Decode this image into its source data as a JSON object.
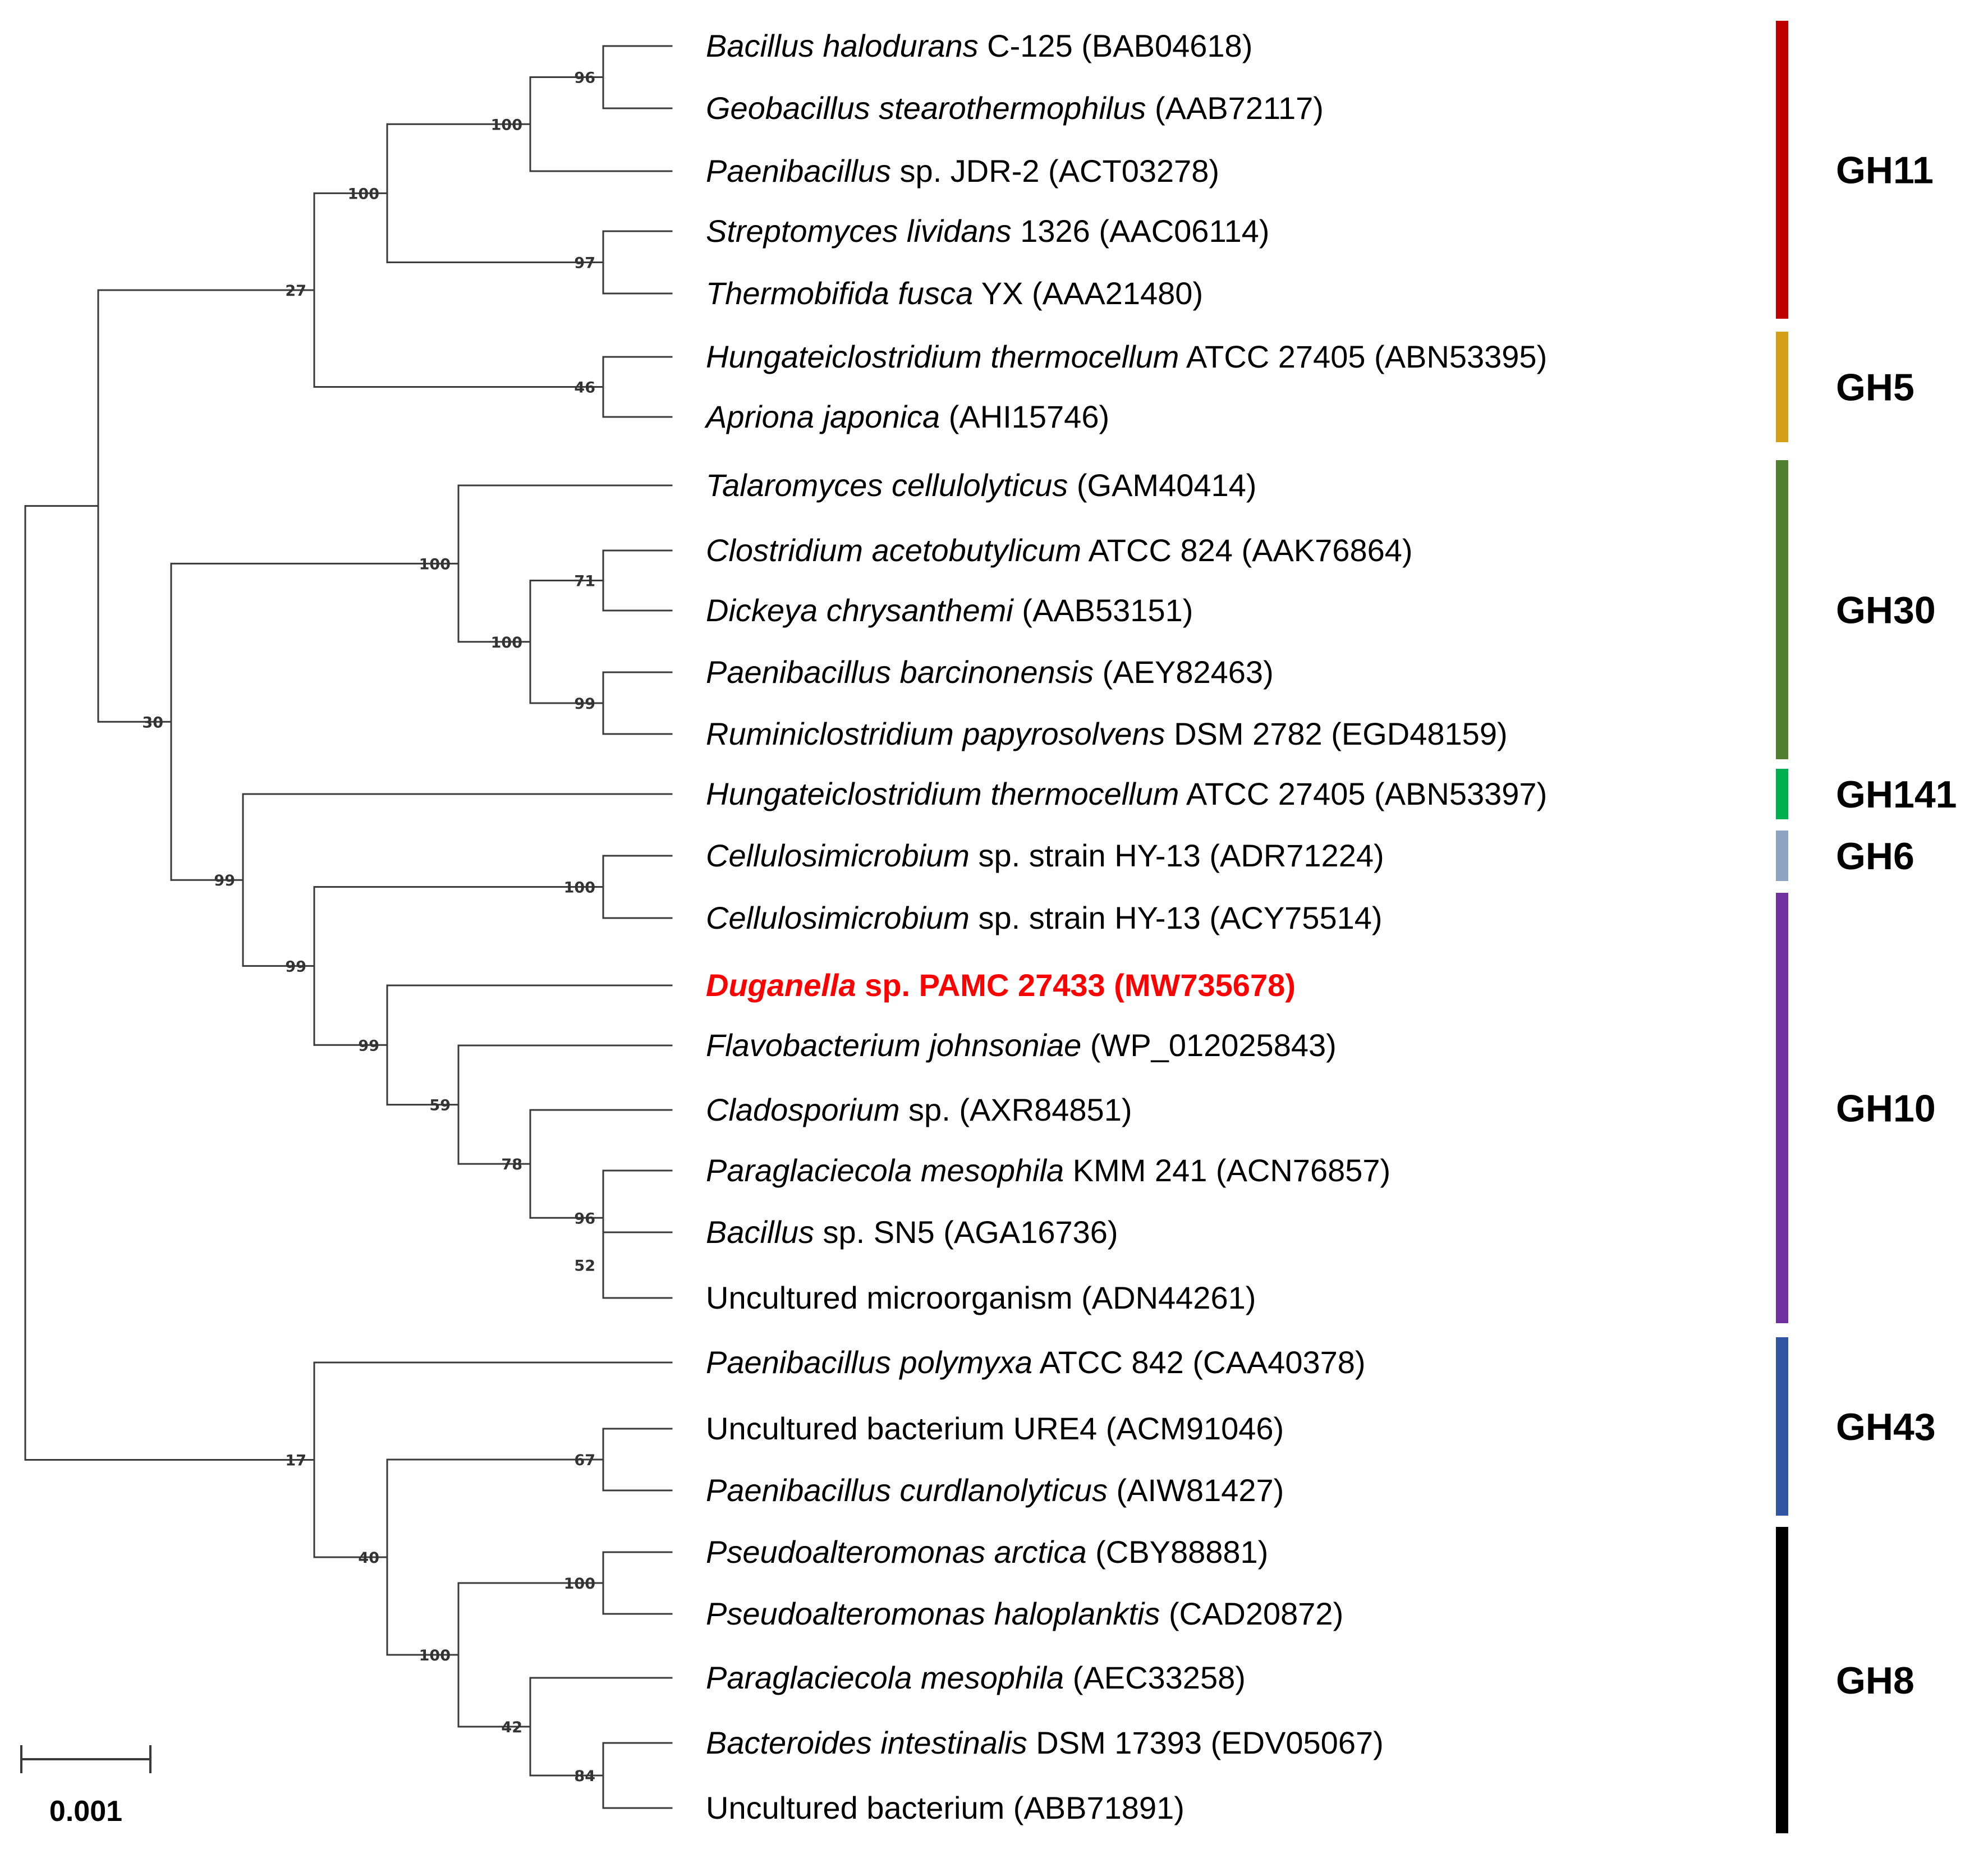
{
  "tree": {
    "nodes": {
      "ROOT": {
        "children": [
          "N_14",
          "N_17"
        ]
      },
      "N_14": {
        "children": [
          "N_30",
          "N_27"
        ]
      },
      "N_27": {
        "children": [
          "N_100_gh11",
          "N_46"
        ],
        "support": "27"
      },
      "N_100_gh11": {
        "children": [
          "N_100_a",
          "N_97"
        ],
        "support": "100"
      },
      "N_100_a": {
        "children": [
          "N_96",
          "L3"
        ],
        "support": "100"
      },
      "N_96": {
        "children": [
          "L1",
          "L2"
        ],
        "support": "96"
      },
      "N_97": {
        "children": [
          "L4",
          "L5"
        ],
        "support": "97"
      },
      "N_46": {
        "children": [
          "L6",
          "L7"
        ],
        "support": "46"
      },
      "N_30": {
        "children": [
          "N_100_gh30",
          "N_99_top"
        ],
        "support": "30"
      },
      "N_100_gh30": {
        "children": [
          "L8",
          "N_100_b"
        ],
        "support": "100"
      },
      "N_100_b": {
        "children": [
          "N_71",
          "N_99_gh30"
        ],
        "support": "100"
      },
      "N_71": {
        "children": [
          "L9",
          "L10"
        ],
        "support": "71"
      },
      "N_99_gh30": {
        "children": [
          "L11",
          "L12"
        ],
        "support": "99"
      },
      "N_99_top": {
        "children": [
          "L13",
          "N_99_b"
        ],
        "support": "99"
      },
      "N_99_b": {
        "children": [
          "N_100_gh6",
          "N_99_c"
        ],
        "support": "99"
      },
      "N_100_gh6": {
        "children": [
          "L14",
          "L15"
        ],
        "support": "100"
      },
      "N_99_c": {
        "children": [
          "L16",
          "N_59"
        ],
        "support": "99"
      },
      "N_59": {
        "children": [
          "L17",
          "N_78"
        ],
        "support": "59"
      },
      "N_78": {
        "children": [
          "L18",
          "N_96_b"
        ],
        "support": "78"
      },
      "N_96_b": {
        "children": [
          "L19",
          "N_52"
        ],
        "support": "96"
      },
      "N_52": {
        "children": [
          "L20",
          "L21"
        ],
        "support": "52"
      },
      "N_17": {
        "children": [
          "L22",
          "N_40"
        ],
        "support": "17"
      },
      "N_40": {
        "children": [
          "N_67",
          "N_100_gh8"
        ],
        "support": "40"
      },
      "N_67": {
        "children": [
          "L23",
          "L24"
        ],
        "support": "67"
      },
      "N_100_gh8": {
        "children": [
          "N_100_c",
          "N_42"
        ],
        "support": "100"
      },
      "N_100_c": {
        "children": [
          "L25",
          "L26"
        ],
        "support": "100"
      },
      "N_42": {
        "children": [
          "L27",
          "N_84"
        ],
        "support": "42"
      },
      "N_84": {
        "children": [
          "L28",
          "L29"
        ],
        "support": "84"
      }
    },
    "leaves": [
      {
        "id": "L1",
        "italic": "Bacillus halodurans",
        "rest": " C-125 (BAB04618)"
      },
      {
        "id": "L2",
        "italic": "Geobacillus stearothermophilus",
        "rest": " (AAB72117)"
      },
      {
        "id": "L3",
        "italic": "Paenibacillus",
        "rest": " sp. JDR-2 (ACT03278)"
      },
      {
        "id": "L4",
        "italic": "Streptomyces lividans",
        "rest": " 1326 (AAC06114)"
      },
      {
        "id": "L5",
        "italic": "Thermobifida fusca",
        "rest": " YX (AAA21480)"
      },
      {
        "id": "L6",
        "italic": "Hungateiclostridium thermocellum",
        "rest": " ATCC 27405 (ABN53395)"
      },
      {
        "id": "L7",
        "italic": "Apriona japonica",
        "rest": " (AHI15746)"
      },
      {
        "id": "L8",
        "italic": "Talaromyces cellulolyticus",
        "rest": " (GAM40414)"
      },
      {
        "id": "L9",
        "italic": "Clostridium acetobutylicum",
        "rest": " ATCC 824 (AAK76864)"
      },
      {
        "id": "L10",
        "italic": "Dickeya chrysanthemi",
        "rest": " (AAB53151)"
      },
      {
        "id": "L11",
        "italic": "Paenibacillus barcinonensis",
        "rest": " (AEY82463)"
      },
      {
        "id": "L12",
        "italic": "Ruminiclostridium papyrosolvens",
        "rest": " DSM 2782 (EGD48159)"
      },
      {
        "id": "L13",
        "italic": "Hungateiclostridium thermocellum",
        "rest": " ATCC 27405 (ABN53397)"
      },
      {
        "id": "L14",
        "italic": "Cellulosimicrobium",
        "rest": " sp. strain HY-13 (ADR71224)"
      },
      {
        "id": "L15",
        "italic": "Cellulosimicrobium",
        "rest": " sp. strain HY-13 (ACY75514)"
      },
      {
        "id": "L16",
        "italic": "Duganella",
        "rest": " sp. PAMC 27433 (MW735678)",
        "highlight": true
      },
      {
        "id": "L17",
        "italic": "Flavobacterium johnsoniae",
        "rest": " (WP_012025843)"
      },
      {
        "id": "L18",
        "italic": "Cladosporium",
        "rest": " sp. (AXR84851)"
      },
      {
        "id": "L19",
        "italic": "Paraglaciecola mesophila",
        "rest": " KMM 241 (ACN76857)"
      },
      {
        "id": "L20",
        "italic": "Bacillus",
        "rest": " sp. SN5 (AGA16736)"
      },
      {
        "id": "L21",
        "italic": "",
        "rest": "Uncultured microorganism (ADN44261)"
      },
      {
        "id": "L22",
        "italic": "Paenibacillus polymyxa",
        "rest": " ATCC 842 (CAA40378)"
      },
      {
        "id": "L23",
        "italic": "",
        "rest": "Uncultured bacterium URE4 (ACM91046)"
      },
      {
        "id": "L24",
        "italic": "Paenibacillus curdlanolyticus",
        "rest": " (AIW81427)"
      },
      {
        "id": "L25",
        "italic": "Pseudoalteromonas arctica",
        "rest": " (CBY88881)"
      },
      {
        "id": "L26",
        "italic": "Pseudoalteromonas haloplanktis",
        "rest": " (CAD20872)"
      },
      {
        "id": "L27",
        "italic": "Paraglaciecola mesophila",
        "rest": " (AEC33258)"
      },
      {
        "id": "L28",
        "italic": "Bacteroides intestinalis",
        "rest": " DSM 17393 (EDV05067)"
      },
      {
        "id": "L29",
        "italic": "",
        "rest": "Uncultured bacterium (ABB71891)"
      }
    ]
  },
  "families": [
    {
      "name": "GH11",
      "color": "#c00000",
      "leaves": [
        "L1",
        "L5"
      ]
    },
    {
      "name": "GH5",
      "color": "#d4a017",
      "leaves": [
        "L6",
        "L7"
      ]
    },
    {
      "name": "GH30",
      "color": "#4f7f2f",
      "leaves": [
        "L8",
        "L12"
      ]
    },
    {
      "name": "GH141",
      "color": "#00b050",
      "leaves": [
        "L13",
        "L13"
      ]
    },
    {
      "name": "GH6",
      "color": "#8ea3c0",
      "leaves": [
        "L14",
        "L14"
      ]
    },
    {
      "name": "GH10",
      "color": "#7030a0",
      "leaves": [
        "L15",
        "L21"
      ]
    },
    {
      "name": "GH43",
      "color": "#2f55a4",
      "leaves": [
        "L22",
        "L24"
      ]
    },
    {
      "name": "GH8",
      "color": "#000000",
      "leaves": [
        "L25",
        "L29"
      ]
    }
  ],
  "scale_bar": {
    "label": "0.001"
  }
}
